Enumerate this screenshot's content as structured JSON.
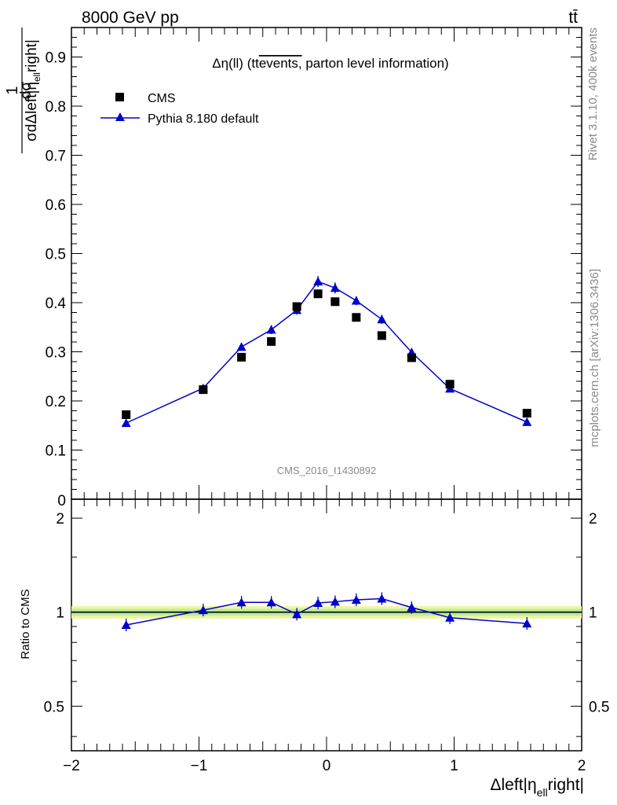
{
  "header": {
    "energy": "8000 GeV pp",
    "process": "tt̄"
  },
  "side_text": {
    "rivet": "Rivet 3.1.10,  400k events",
    "source": "mcplots.cern.ch [arXiv:1306.3436]"
  },
  "chart_data": [
    {
      "type": "scatter",
      "title": "Δη(ll) (tt̄ events, parton level information)",
      "title_parts": {
        "prefix": "Δη(ll) (tt",
        "overline": "events,",
        "suffix": " parton level information)"
      },
      "watermark": "CMS_2016_I1430892",
      "ylabel": "1/σ dσ/dΔleft|η_ell right|",
      "ylabel_parts": {
        "numerator": "dσ",
        "denominator": "σdΔleft|η",
        "subscript": "ell",
        "after": "right|",
        "one": "1"
      },
      "xlim": [
        -2,
        2
      ],
      "ylim": [
        0,
        0.96
      ],
      "yticks": [
        0.1,
        0.2,
        0.3,
        0.4,
        0.5,
        0.6,
        0.7,
        0.8,
        0.9
      ],
      "ytick_labels": [
        "0.1",
        "0.2",
        "0.3",
        "0.4",
        "0.5",
        "0.6",
        "0.7",
        "0.8",
        "0.9"
      ],
      "bottom_tick_label": "0",
      "legend_position": "top-left",
      "series": [
        {
          "name": "CMS",
          "marker": "square",
          "color": "#000000",
          "x": [
            -1.571,
            -0.967,
            -0.667,
            -0.433,
            -0.233,
            -0.067,
            0.067,
            0.233,
            0.433,
            0.667,
            0.967,
            1.571
          ],
          "y": [
            0.172,
            0.223,
            0.289,
            0.321,
            0.392,
            0.418,
            0.402,
            0.37,
            0.333,
            0.288,
            0.234,
            0.175
          ]
        },
        {
          "name": "Pythia 8.180 default",
          "marker": "triangle",
          "color": "#0000cc",
          "x": [
            -1.571,
            -0.967,
            -0.667,
            -0.433,
            -0.233,
            -0.067,
            0.067,
            0.233,
            0.433,
            0.667,
            0.967,
            1.571
          ],
          "y": [
            0.155,
            0.226,
            0.31,
            0.345,
            0.385,
            0.443,
            0.43,
            0.404,
            0.366,
            0.299,
            0.225,
            0.157
          ],
          "yerr": [
            0.004,
            0.006,
            0.008,
            0.009,
            0.009,
            0.011,
            0.011,
            0.009,
            0.009,
            0.008,
            0.006,
            0.004
          ]
        }
      ]
    },
    {
      "type": "scatter",
      "ylabel": "Ratio to CMS",
      "xlabel": "Δleft|η_ell right|",
      "xlabel_parts": {
        "main": "Δleft|η",
        "subscript": "ell",
        "after": "right|"
      },
      "xlim": [
        -2,
        2
      ],
      "ylim": [
        0.36,
        2.3
      ],
      "yscale": "log",
      "xticks": [
        -2,
        -1,
        0,
        1,
        2
      ],
      "xtick_labels": [
        "−2",
        "−1",
        "0",
        "1",
        "2"
      ],
      "yticks": [
        0.5,
        1,
        2
      ],
      "ytick_labels": [
        "0.5",
        "1",
        "2"
      ],
      "reference_band": {
        "inner": [
          0.975,
          1.025
        ],
        "outer": [
          0.955,
          1.045
        ]
      },
      "series": [
        {
          "name": "Pythia 8.180 default",
          "color": "#0000cc",
          "x": [
            -1.571,
            -0.967,
            -0.667,
            -0.433,
            -0.233,
            -0.067,
            0.067,
            0.233,
            0.433,
            0.667,
            0.967,
            1.571
          ],
          "y": [
            0.91,
            1.015,
            1.075,
            1.075,
            0.985,
            1.07,
            1.08,
            1.095,
            1.105,
            1.035,
            0.96,
            0.92
          ]
        }
      ]
    }
  ]
}
